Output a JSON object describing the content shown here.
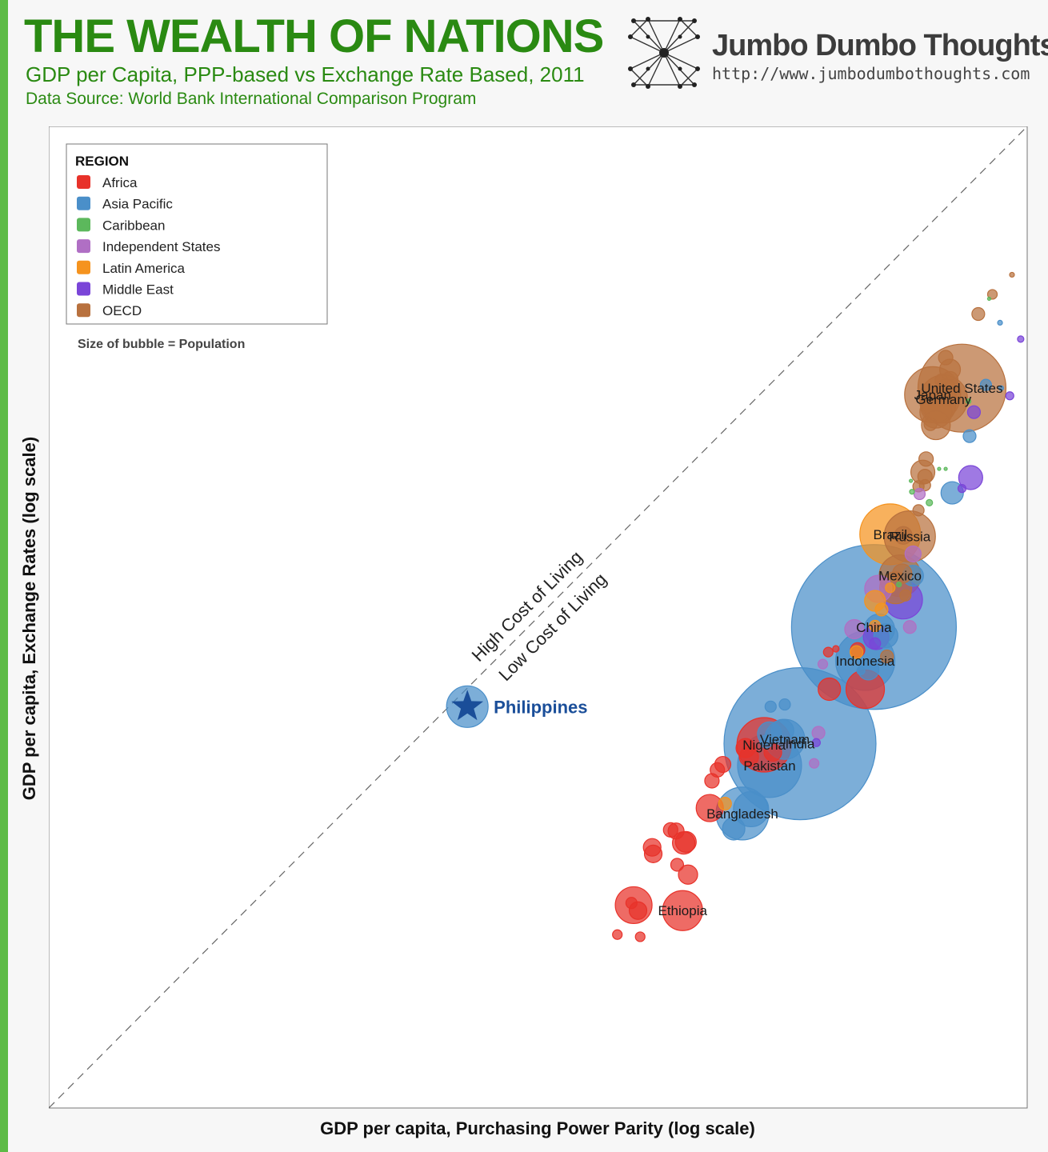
{
  "header": {
    "title": "THE WEALTH OF NATIONS",
    "subtitle": "GDP per Capita, PPP-based vs Exchange Rate Based, 2011",
    "source": "Data Source: World Bank International Comparison Program"
  },
  "brand": {
    "name": "Jumbo Dumbo Thoughts",
    "url": "http://www.jumbodumbothoughts.com"
  },
  "chart_data": {
    "type": "scatter",
    "xlabel": "GDP per capita, Purchasing Power Parity (log scale)",
    "ylabel": "GDP per capita, Exchange Rates (log scale)",
    "x_scale": "log",
    "y_scale": "log",
    "xlim": [
      10,
      100
    ],
    "ylim": [
      10,
      100
    ],
    "grid": false,
    "legend": {
      "title": "REGION",
      "placement": "top-left",
      "note": "Size of bubble = Population",
      "entries": [
        {
          "name": "Africa",
          "color": "#e8322a"
        },
        {
          "name": "Asia Pacific",
          "color": "#4a8fc9"
        },
        {
          "name": "Caribbean",
          "color": "#5cb85c"
        },
        {
          "name": "Independent States",
          "color": "#b06fc4"
        },
        {
          "name": "Latin America",
          "color": "#f5931e"
        },
        {
          "name": "Middle East",
          "color": "#7a45d8"
        },
        {
          "name": "OECD",
          "color": "#b8713e"
        }
      ]
    },
    "reference_line": {
      "kind": "diagonal",
      "style": "dashed",
      "above_label": "High Cost of Living",
      "below_label": "Low Cost of Living"
    },
    "highlight": {
      "label": "Philippines",
      "marker": "star",
      "color": "#1a4e99",
      "x": 48.5,
      "y": 46.8
    },
    "series": [
      {
        "region": "OECD",
        "points": [
          {
            "x": 94,
            "y": 76,
            "s": 55,
            "label": "United States"
          },
          {
            "x": 91.3,
            "y": 75.4,
            "s": 35,
            "label": "Japan"
          },
          {
            "x": 92.3,
            "y": 75,
            "s": 30,
            "label": "Germany"
          },
          {
            "x": 92.9,
            "y": 77.7,
            "s": 13
          },
          {
            "x": 92.9,
            "y": 76.8,
            "s": 10
          },
          {
            "x": 92.5,
            "y": 75.8,
            "s": 14
          },
          {
            "x": 92.6,
            "y": 75.3,
            "s": 12
          },
          {
            "x": 91.8,
            "y": 74.4,
            "s": 22
          },
          {
            "x": 91.6,
            "y": 73.8,
            "s": 20
          },
          {
            "x": 91.6,
            "y": 72.6,
            "s": 18
          },
          {
            "x": 91.1,
            "y": 72.7,
            "s": 8
          },
          {
            "x": 92.1,
            "y": 76.7,
            "s": 8
          },
          {
            "x": 90.7,
            "y": 69.5,
            "s": 9
          },
          {
            "x": 90.4,
            "y": 68.3,
            "s": 15
          },
          {
            "x": 90.6,
            "y": 67.9,
            "s": 9
          },
          {
            "x": 90.0,
            "y": 67.0,
            "s": 7
          },
          {
            "x": 90.6,
            "y": 67.1,
            "s": 7
          },
          {
            "x": 89.2,
            "y": 62.4,
            "s": 32,
            "label": "Russia"
          },
          {
            "x": 88.6,
            "y": 62.5,
            "s": 11
          },
          {
            "x": 88.3,
            "y": 58.8,
            "s": 26,
            "label": "Mexico"
          },
          {
            "x": 87.9,
            "y": 57.7,
            "s": 20
          },
          {
            "x": 88.5,
            "y": 59.0,
            "s": 12
          },
          {
            "x": 88.8,
            "y": 57.0,
            "s": 7
          },
          {
            "x": 87.1,
            "y": 51.4,
            "s": 8
          },
          {
            "x": 90.0,
            "y": 64.8,
            "s": 7
          },
          {
            "x": 95.5,
            "y": 82.8,
            "s": 8
          },
          {
            "x": 96.8,
            "y": 84.6,
            "s": 6
          },
          {
            "x": 98.6,
            "y": 86.4,
            "s": 3
          },
          {
            "x": 92.5,
            "y": 78.8,
            "s": 9
          }
        ]
      },
      {
        "region": "Asia Pacific",
        "points": [
          {
            "x": 85.9,
            "y": 54.1,
            "s": 103,
            "label": "China"
          },
          {
            "x": 79.1,
            "y": 43.4,
            "s": 95,
            "label": "India"
          },
          {
            "x": 85.1,
            "y": 51.0,
            "s": 37,
            "label": "Indonesia"
          },
          {
            "x": 76.3,
            "y": 41.4,
            "s": 40,
            "label": "Pakistan"
          },
          {
            "x": 73.8,
            "y": 37.0,
            "s": 33,
            "label": "Bangladesh"
          },
          {
            "x": 77.7,
            "y": 43.8,
            "s": 25,
            "label": "Vietnam"
          },
          {
            "x": 74.6,
            "y": 37.4,
            "s": 22
          },
          {
            "x": 73.0,
            "y": 35.6,
            "s": 14
          },
          {
            "x": 87.0,
            "y": 53.3,
            "s": 15
          },
          {
            "x": 85.4,
            "y": 50.2,
            "s": 13
          },
          {
            "x": 89.5,
            "y": 58.8,
            "s": 13
          },
          {
            "x": 94.7,
            "y": 71.6,
            "s": 8
          },
          {
            "x": 96.2,
            "y": 76.3,
            "s": 7
          },
          {
            "x": 93.1,
            "y": 66.4,
            "s": 14
          },
          {
            "x": 97.5,
            "y": 82.0,
            "s": 3
          },
          {
            "x": 97.6,
            "y": 76.0,
            "s": 3
          },
          {
            "x": 76.3,
            "y": 44.3,
            "s": 15
          },
          {
            "x": 76.0,
            "y": 43.6,
            "s": 8
          },
          {
            "x": 77.5,
            "y": 44.6,
            "s": 14
          },
          {
            "x": 77.7,
            "y": 47.0,
            "s": 7
          },
          {
            "x": 76.4,
            "y": 46.8,
            "s": 7
          },
          {
            "x": 86.4,
            "y": 53.9,
            "s": 19
          },
          {
            "x": 84.7,
            "y": 50.1,
            "s": 5
          }
        ]
      },
      {
        "region": "Africa",
        "points": [
          {
            "x": 75.8,
            "y": 43.3,
            "s": 34,
            "label": "Nigeria"
          },
          {
            "x": 68.3,
            "y": 28.1,
            "s": 25,
            "label": "Ethiopia"
          },
          {
            "x": 68.4,
            "y": 34.3,
            "s": 14
          },
          {
            "x": 68.6,
            "y": 34.4,
            "s": 13
          },
          {
            "x": 65.5,
            "y": 33.9,
            "s": 11
          },
          {
            "x": 65.6,
            "y": 33.3,
            "s": 11
          },
          {
            "x": 63.8,
            "y": 28.6,
            "s": 23
          },
          {
            "x": 64.2,
            "y": 28.1,
            "s": 11
          },
          {
            "x": 64.4,
            "y": 25.7,
            "s": 6
          },
          {
            "x": 67.2,
            "y": 35.5,
            "s": 9
          },
          {
            "x": 67.7,
            "y": 35.4,
            "s": 10
          },
          {
            "x": 70.8,
            "y": 37.5,
            "s": 17
          },
          {
            "x": 72.0,
            "y": 41.5,
            "s": 10
          },
          {
            "x": 71.5,
            "y": 41.0,
            "s": 9
          },
          {
            "x": 71.0,
            "y": 40.0,
            "s": 9
          },
          {
            "x": 76.6,
            "y": 42.6,
            "s": 11
          },
          {
            "x": 74.1,
            "y": 43.0,
            "s": 12
          },
          {
            "x": 74.4,
            "y": 42.2,
            "s": 12
          },
          {
            "x": 81.8,
            "y": 48.4,
            "s": 14
          },
          {
            "x": 85.1,
            "y": 48.4,
            "s": 24
          },
          {
            "x": 81.7,
            "y": 51.8,
            "s": 6
          },
          {
            "x": 82.4,
            "y": 52.1,
            "s": 4
          },
          {
            "x": 84.4,
            "y": 52.0,
            "s": 9
          },
          {
            "x": 62.3,
            "y": 25.9,
            "s": 6
          },
          {
            "x": 63.6,
            "y": 28.8,
            "s": 7
          },
          {
            "x": 67.8,
            "y": 32.3,
            "s": 8
          },
          {
            "x": 68.8,
            "y": 31.4,
            "s": 12
          }
        ]
      },
      {
        "region": "Latin America",
        "points": [
          {
            "x": 87.4,
            "y": 62.6,
            "s": 38,
            "label": "Brazil"
          },
          {
            "x": 87.4,
            "y": 57.7,
            "s": 6
          },
          {
            "x": 86.0,
            "y": 56.5,
            "s": 13
          },
          {
            "x": 86.6,
            "y": 55.7,
            "s": 8
          },
          {
            "x": 86.0,
            "y": 54.2,
            "s": 7
          },
          {
            "x": 84.3,
            "y": 51.8,
            "s": 8
          },
          {
            "x": 72.2,
            "y": 37.9,
            "s": 8
          }
        ]
      },
      {
        "region": "Independent States",
        "points": [
          {
            "x": 86.3,
            "y": 57.6,
            "s": 17
          },
          {
            "x": 84.1,
            "y": 53.9,
            "s": 12
          },
          {
            "x": 89.5,
            "y": 60.8,
            "s": 10
          },
          {
            "x": 90.1,
            "y": 66.3,
            "s": 7
          },
          {
            "x": 89.2,
            "y": 54.1,
            "s": 8
          },
          {
            "x": 80.8,
            "y": 44.4,
            "s": 8
          },
          {
            "x": 80.4,
            "y": 41.6,
            "s": 6
          },
          {
            "x": 81.2,
            "y": 50.7,
            "s": 6
          }
        ]
      },
      {
        "region": "Middle East",
        "points": [
          {
            "x": 88.6,
            "y": 56.6,
            "s": 24
          },
          {
            "x": 86.1,
            "y": 53.2,
            "s": 16
          },
          {
            "x": 94.8,
            "y": 67.8,
            "s": 15
          },
          {
            "x": 98.4,
            "y": 75.3,
            "s": 5
          },
          {
            "x": 99.4,
            "y": 80.5,
            "s": 4
          },
          {
            "x": 95.1,
            "y": 73.8,
            "s": 8
          },
          {
            "x": 94.0,
            "y": 66.8,
            "s": 5
          },
          {
            "x": 86.0,
            "y": 52.6,
            "s": 7
          },
          {
            "x": 80.6,
            "y": 43.5,
            "s": 5
          }
        ]
      },
      {
        "region": "Caribbean",
        "points": [
          {
            "x": 88.2,
            "y": 58.0,
            "s": 3
          },
          {
            "x": 91.0,
            "y": 65.5,
            "s": 4
          },
          {
            "x": 91.9,
            "y": 68.6,
            "s": 2
          },
          {
            "x": 92.5,
            "y": 68.6,
            "s": 2
          },
          {
            "x": 89.3,
            "y": 67.5,
            "s": 2
          },
          {
            "x": 94.6,
            "y": 74.8,
            "s": 3
          },
          {
            "x": 96.5,
            "y": 84.2,
            "s": 2
          },
          {
            "x": 89.4,
            "y": 66.5,
            "s": 3
          }
        ]
      }
    ]
  }
}
